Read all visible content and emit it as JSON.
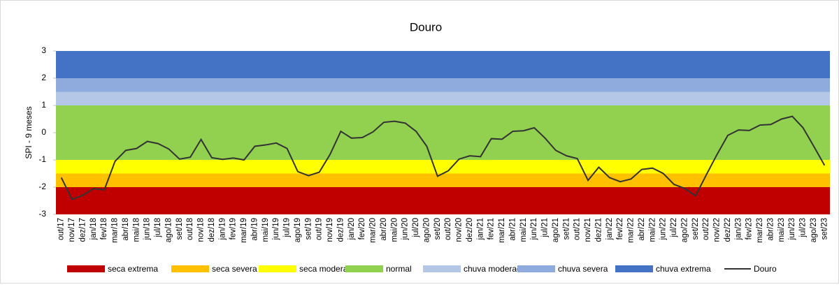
{
  "chart_data": {
    "type": "line",
    "title": "Douro",
    "y_label": "SPI - 9 meses",
    "categories": [
      "out/17",
      "nov/17",
      "dez/17",
      "jan/18",
      "fev/18",
      "mar/18",
      "abr/18",
      "mai/18",
      "jun/18",
      "jul/18",
      "ago/18",
      "set/18",
      "out/18",
      "nov/18",
      "dez/18",
      "jan/19",
      "fev/19",
      "mar/19",
      "abr/19",
      "mai/19",
      "jun/19",
      "jul/19",
      "ago/19",
      "set/19",
      "out/19",
      "nov/19",
      "dez/19",
      "jan/20",
      "fev/20",
      "mar/20",
      "abr/20",
      "mai/20",
      "jun/20",
      "jul/20",
      "ago/20",
      "set/20",
      "out/20",
      "nov/20",
      "dez/20",
      "jan/21",
      "fev/21",
      "mar/21",
      "abr/21",
      "mai/21",
      "jun/21",
      "jul/21",
      "ago/21",
      "set/21",
      "out/21",
      "nov/21",
      "dez/21",
      "jan/22",
      "fev/22",
      "mar/22",
      "abr/22",
      "mai/22",
      "jun/22",
      "jul/22",
      "ago/22",
      "set/22",
      "out/22",
      "nov/22",
      "dez/22",
      "jan/23",
      "fev/23",
      "mar/23",
      "abr/23",
      "mai/23",
      "jun/23",
      "jul/23",
      "ago/23",
      "set/23"
    ],
    "ylim": [
      -3,
      3
    ],
    "yticks": [
      -3,
      -2,
      -1,
      0,
      1,
      2,
      3
    ],
    "bands": [
      {
        "name": "seca extrema",
        "color": "#c00000",
        "from": -3,
        "to": -2
      },
      {
        "name": "seca severa",
        "color": "#ffc000",
        "from": -2,
        "to": -1.5
      },
      {
        "name": "seca moderada",
        "color": "#ffff00",
        "from": -1.5,
        "to": -1
      },
      {
        "name": "normal",
        "color": "#92d050",
        "from": -1,
        "to": 1
      },
      {
        "name": "chuva moderada",
        "color": "#b4c7e7",
        "from": 1,
        "to": 1.5
      },
      {
        "name": "chuva severa",
        "color": "#8faadc",
        "from": 1.5,
        "to": 2
      },
      {
        "name": "chuva extrema",
        "color": "#4472c4",
        "from": 2,
        "to": 3
      }
    ],
    "series": [
      {
        "name": "Douro",
        "color": "#333333",
        "values": [
          -1.65,
          -2.45,
          -2.3,
          -2.05,
          -2.1,
          -1.05,
          -0.65,
          -0.58,
          -0.32,
          -0.4,
          -0.6,
          -0.97,
          -0.9,
          -0.25,
          -0.92,
          -0.98,
          -0.93,
          -1.0,
          -0.5,
          -0.45,
          -0.38,
          -0.58,
          -1.43,
          -1.58,
          -1.45,
          -0.8,
          0.05,
          -0.2,
          -0.18,
          0.03,
          0.38,
          0.42,
          0.35,
          0.05,
          -0.5,
          -1.6,
          -1.4,
          -0.97,
          -0.85,
          -0.88,
          -0.22,
          -0.24,
          0.05,
          0.07,
          0.18,
          -0.2,
          -0.65,
          -0.85,
          -0.95,
          -1.75,
          -1.27,
          -1.65,
          -1.8,
          -1.7,
          -1.35,
          -1.3,
          -1.5,
          -1.9,
          -2.05,
          -2.32,
          -1.55,
          -0.8,
          -0.1,
          0.1,
          0.08,
          0.28,
          0.3,
          0.5,
          0.6,
          0.18,
          -0.5,
          -1.2
        ]
      }
    ]
  }
}
